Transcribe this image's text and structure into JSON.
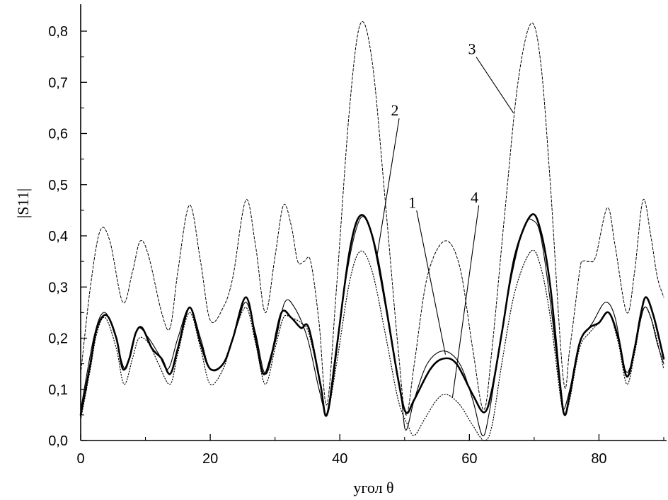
{
  "chart_data": {
    "type": "line",
    "xlabel": "угол θ",
    "ylabel": "|S11|",
    "xlim": [
      0,
      90
    ],
    "ylim": [
      0,
      0.85
    ],
    "x_ticks": [
      0,
      20,
      40,
      60,
      80
    ],
    "x_tick_labels": [
      "0",
      "20",
      "40",
      "60",
      "80"
    ],
    "y_ticks": [
      0,
      0.1,
      0.2,
      0.3,
      0.4,
      0.5,
      0.6,
      0.7,
      0.8
    ],
    "y_tick_labels": [
      "0,0",
      "0,1",
      "0,2",
      "0,3",
      "0,4",
      "0,5",
      "0,6",
      "0,7",
      "0,8"
    ],
    "grid": false,
    "series": [
      {
        "name": "1",
        "style": "thin-solid",
        "points": [
          [
            0,
            0.06
          ],
          [
            2,
            0.2
          ],
          [
            3.5,
            0.25
          ],
          [
            5,
            0.22
          ],
          [
            6.8,
            0.14
          ],
          [
            8,
            0.19
          ],
          [
            9,
            0.22
          ],
          [
            10.5,
            0.2
          ],
          [
            12,
            0.17
          ],
          [
            13.5,
            0.14
          ],
          [
            15,
            0.2
          ],
          [
            16.8,
            0.26
          ],
          [
            18.5,
            0.2
          ],
          [
            20,
            0.14
          ],
          [
            22,
            0.15
          ],
          [
            24,
            0.22
          ],
          [
            25.5,
            0.27
          ],
          [
            27,
            0.21
          ],
          [
            28.5,
            0.13
          ],
          [
            30,
            0.19
          ],
          [
            31.5,
            0.27
          ],
          [
            33,
            0.26
          ],
          [
            35,
            0.2
          ],
          [
            36.8,
            0.1
          ],
          [
            38,
            0.05
          ],
          [
            39,
            0.12
          ],
          [
            41,
            0.32
          ],
          [
            43,
            0.43
          ],
          [
            44.5,
            0.42
          ],
          [
            46,
            0.35
          ],
          [
            48,
            0.2
          ],
          [
            49.5,
            0.08
          ],
          [
            50.2,
            0.02
          ],
          [
            51.5,
            0.08
          ],
          [
            53.5,
            0.15
          ],
          [
            56,
            0.175
          ],
          [
            58.5,
            0.15
          ],
          [
            60.5,
            0.08
          ],
          [
            62,
            0.01
          ],
          [
            63,
            0.05
          ],
          [
            64.5,
            0.17
          ],
          [
            66.5,
            0.32
          ],
          [
            68.5,
            0.42
          ],
          [
            69.8,
            0.43
          ],
          [
            71,
            0.4
          ],
          [
            72.5,
            0.27
          ],
          [
            74,
            0.1
          ],
          [
            74.5,
            0.06
          ],
          [
            75.5,
            0.1
          ],
          [
            77,
            0.19
          ],
          [
            79,
            0.23
          ],
          [
            81,
            0.27
          ],
          [
            82.5,
            0.24
          ],
          [
            84,
            0.14
          ],
          [
            85,
            0.15
          ],
          [
            86,
            0.21
          ],
          [
            87,
            0.26
          ],
          [
            88,
            0.24
          ],
          [
            89,
            0.19
          ],
          [
            90,
            0.15
          ]
        ]
      },
      {
        "name": "2",
        "style": "thick-solid",
        "points": [
          [
            0,
            0.05
          ],
          [
            1.5,
            0.15
          ],
          [
            2.5,
            0.22
          ],
          [
            4,
            0.245
          ],
          [
            5.5,
            0.2
          ],
          [
            6.5,
            0.14
          ],
          [
            7.5,
            0.16
          ],
          [
            8.5,
            0.21
          ],
          [
            9.5,
            0.22
          ],
          [
            11,
            0.18
          ],
          [
            12.5,
            0.16
          ],
          [
            13.8,
            0.13
          ],
          [
            15,
            0.18
          ],
          [
            16.8,
            0.26
          ],
          [
            18.5,
            0.19
          ],
          [
            20,
            0.14
          ],
          [
            22,
            0.15
          ],
          [
            23.5,
            0.2
          ],
          [
            25.5,
            0.28
          ],
          [
            27,
            0.2
          ],
          [
            28.2,
            0.13
          ],
          [
            29.5,
            0.17
          ],
          [
            31,
            0.25
          ],
          [
            32.5,
            0.24
          ],
          [
            34,
            0.22
          ],
          [
            35.2,
            0.22
          ],
          [
            37,
            0.11
          ],
          [
            38,
            0.05
          ],
          [
            39.5,
            0.18
          ],
          [
            41.5,
            0.37
          ],
          [
            43.2,
            0.44
          ],
          [
            45,
            0.4
          ],
          [
            47,
            0.27
          ],
          [
            49,
            0.12
          ],
          [
            50.2,
            0.055
          ],
          [
            51.5,
            0.08
          ],
          [
            54,
            0.14
          ],
          [
            56,
            0.16
          ],
          [
            58,
            0.15
          ],
          [
            60.5,
            0.09
          ],
          [
            62.3,
            0.055
          ],
          [
            63.5,
            0.1
          ],
          [
            65,
            0.21
          ],
          [
            67,
            0.36
          ],
          [
            69.5,
            0.44
          ],
          [
            71,
            0.41
          ],
          [
            72.5,
            0.3
          ],
          [
            74,
            0.11
          ],
          [
            74.7,
            0.05
          ],
          [
            75.5,
            0.09
          ],
          [
            77,
            0.19
          ],
          [
            78.5,
            0.22
          ],
          [
            80,
            0.23
          ],
          [
            81.5,
            0.25
          ],
          [
            83,
            0.2
          ],
          [
            84.3,
            0.125
          ],
          [
            85.5,
            0.18
          ],
          [
            86.5,
            0.25
          ],
          [
            87.3,
            0.28
          ],
          [
            88.5,
            0.24
          ],
          [
            90,
            0.16
          ]
        ]
      },
      {
        "name": "3",
        "style": "dashed",
        "points": [
          [
            0,
            0.13
          ],
          [
            1.5,
            0.3
          ],
          [
            3,
            0.41
          ],
          [
            4.5,
            0.39
          ],
          [
            6.5,
            0.27
          ],
          [
            8,
            0.33
          ],
          [
            9.2,
            0.39
          ],
          [
            10.5,
            0.36
          ],
          [
            12.5,
            0.25
          ],
          [
            13.8,
            0.22
          ],
          [
            15,
            0.33
          ],
          [
            16.8,
            0.46
          ],
          [
            18.5,
            0.35
          ],
          [
            20,
            0.235
          ],
          [
            22,
            0.26
          ],
          [
            23.5,
            0.32
          ],
          [
            25.5,
            0.47
          ],
          [
            27,
            0.38
          ],
          [
            28.5,
            0.25
          ],
          [
            30,
            0.36
          ],
          [
            31.3,
            0.46
          ],
          [
            32.5,
            0.42
          ],
          [
            33.5,
            0.35
          ],
          [
            34.5,
            0.35
          ],
          [
            35.5,
            0.35
          ],
          [
            36.8,
            0.23
          ],
          [
            38,
            0.07
          ],
          [
            39.5,
            0.3
          ],
          [
            41.5,
            0.65
          ],
          [
            43.2,
            0.815
          ],
          [
            45,
            0.74
          ],
          [
            47,
            0.47
          ],
          [
            49,
            0.18
          ],
          [
            50.2,
            0.05
          ],
          [
            51.5,
            0.15
          ],
          [
            53.5,
            0.32
          ],
          [
            56.2,
            0.39
          ],
          [
            58.5,
            0.34
          ],
          [
            60.5,
            0.18
          ],
          [
            62.2,
            0.06
          ],
          [
            63.5,
            0.18
          ],
          [
            65.5,
            0.45
          ],
          [
            67.5,
            0.7
          ],
          [
            69.5,
            0.815
          ],
          [
            71,
            0.74
          ],
          [
            72.5,
            0.5
          ],
          [
            74.5,
            0.12
          ],
          [
            75.5,
            0.18
          ],
          [
            77,
            0.33
          ],
          [
            77.5,
            0.35
          ],
          [
            78.5,
            0.35
          ],
          [
            79.5,
            0.36
          ],
          [
            81.3,
            0.455
          ],
          [
            82.5,
            0.38
          ],
          [
            84.3,
            0.25
          ],
          [
            85.5,
            0.33
          ],
          [
            86.8,
            0.47
          ],
          [
            88,
            0.4
          ],
          [
            89,
            0.32
          ],
          [
            90,
            0.28
          ]
        ]
      },
      {
        "name": "4",
        "style": "dotted",
        "points": [
          [
            0,
            0.04
          ],
          [
            1.5,
            0.14
          ],
          [
            2.5,
            0.21
          ],
          [
            3.8,
            0.24
          ],
          [
            5.5,
            0.18
          ],
          [
            6.7,
            0.11
          ],
          [
            8,
            0.16
          ],
          [
            9,
            0.2
          ],
          [
            10.5,
            0.19
          ],
          [
            12,
            0.15
          ],
          [
            13.8,
            0.11
          ],
          [
            15,
            0.17
          ],
          [
            16.8,
            0.25
          ],
          [
            18.5,
            0.18
          ],
          [
            20,
            0.11
          ],
          [
            22,
            0.14
          ],
          [
            23.5,
            0.2
          ],
          [
            25.5,
            0.26
          ],
          [
            27,
            0.19
          ],
          [
            28.5,
            0.11
          ],
          [
            30,
            0.18
          ],
          [
            31.3,
            0.24
          ],
          [
            32.5,
            0.24
          ],
          [
            34,
            0.23
          ],
          [
            35.2,
            0.21
          ],
          [
            37,
            0.11
          ],
          [
            38,
            0.05
          ],
          [
            39.5,
            0.15
          ],
          [
            41.5,
            0.31
          ],
          [
            43.2,
            0.37
          ],
          [
            45,
            0.33
          ],
          [
            47,
            0.21
          ],
          [
            49,
            0.08
          ],
          [
            50.5,
            0.03
          ],
          [
            51.5,
            0.01
          ],
          [
            53,
            0.04
          ],
          [
            55,
            0.08
          ],
          [
            56.5,
            0.09
          ],
          [
            58.5,
            0.07
          ],
          [
            60.5,
            0.03
          ],
          [
            62.3,
            0.0
          ],
          [
            63.5,
            0.03
          ],
          [
            65,
            0.15
          ],
          [
            67,
            0.29
          ],
          [
            69.5,
            0.37
          ],
          [
            71,
            0.34
          ],
          [
            72.5,
            0.24
          ],
          [
            74,
            0.09
          ],
          [
            74.7,
            0.05
          ],
          [
            75.5,
            0.08
          ],
          [
            77,
            0.18
          ],
          [
            78.5,
            0.21
          ],
          [
            80,
            0.23
          ],
          [
            81.5,
            0.25
          ],
          [
            83,
            0.19
          ],
          [
            84.3,
            0.11
          ],
          [
            85.5,
            0.17
          ],
          [
            86.5,
            0.24
          ],
          [
            87.3,
            0.26
          ],
          [
            88.5,
            0.22
          ],
          [
            90,
            0.14
          ]
        ]
      }
    ],
    "annotations": [
      {
        "text": "1",
        "label_at": [
          51.2,
          0.455
        ],
        "points_to": [
          56.3,
          0.168
        ]
      },
      {
        "text": "2",
        "label_at": [
          48.5,
          0.635
        ],
        "points_to": [
          45.8,
          0.365
        ]
      },
      {
        "text": "3",
        "label_at": [
          60.4,
          0.755
        ],
        "points_to": [
          66.8,
          0.64
        ]
      },
      {
        "text": "4",
        "label_at": [
          60.8,
          0.465
        ],
        "points_to": [
          57.4,
          0.085
        ]
      }
    ]
  }
}
